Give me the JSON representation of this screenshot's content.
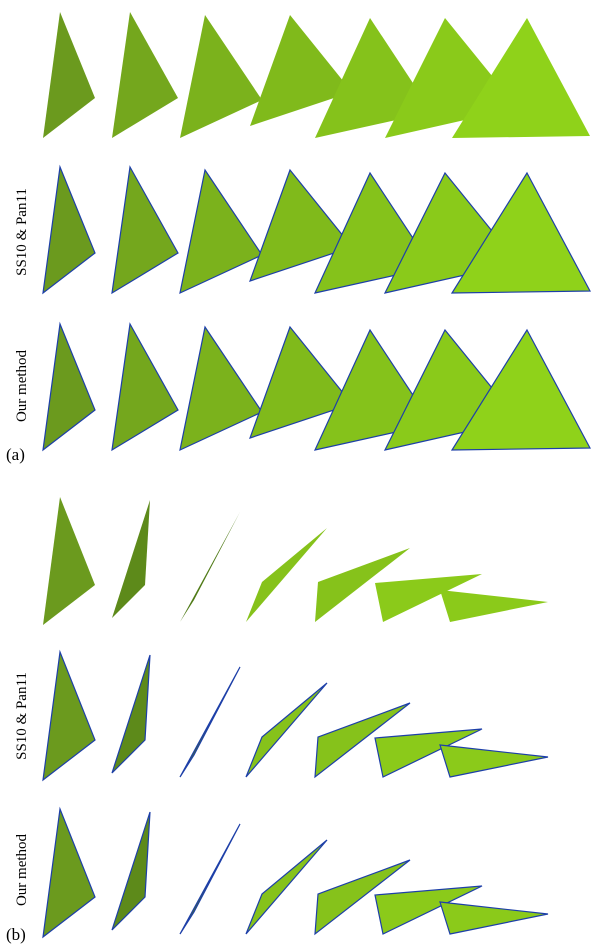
{
  "panels": [
    {
      "label": "(a)",
      "rows": [
        "SS10 & Pan11",
        "Our method"
      ]
    },
    {
      "label": "(b)",
      "rows": [
        "SS10 & Pan11",
        "Our method"
      ]
    }
  ]
}
